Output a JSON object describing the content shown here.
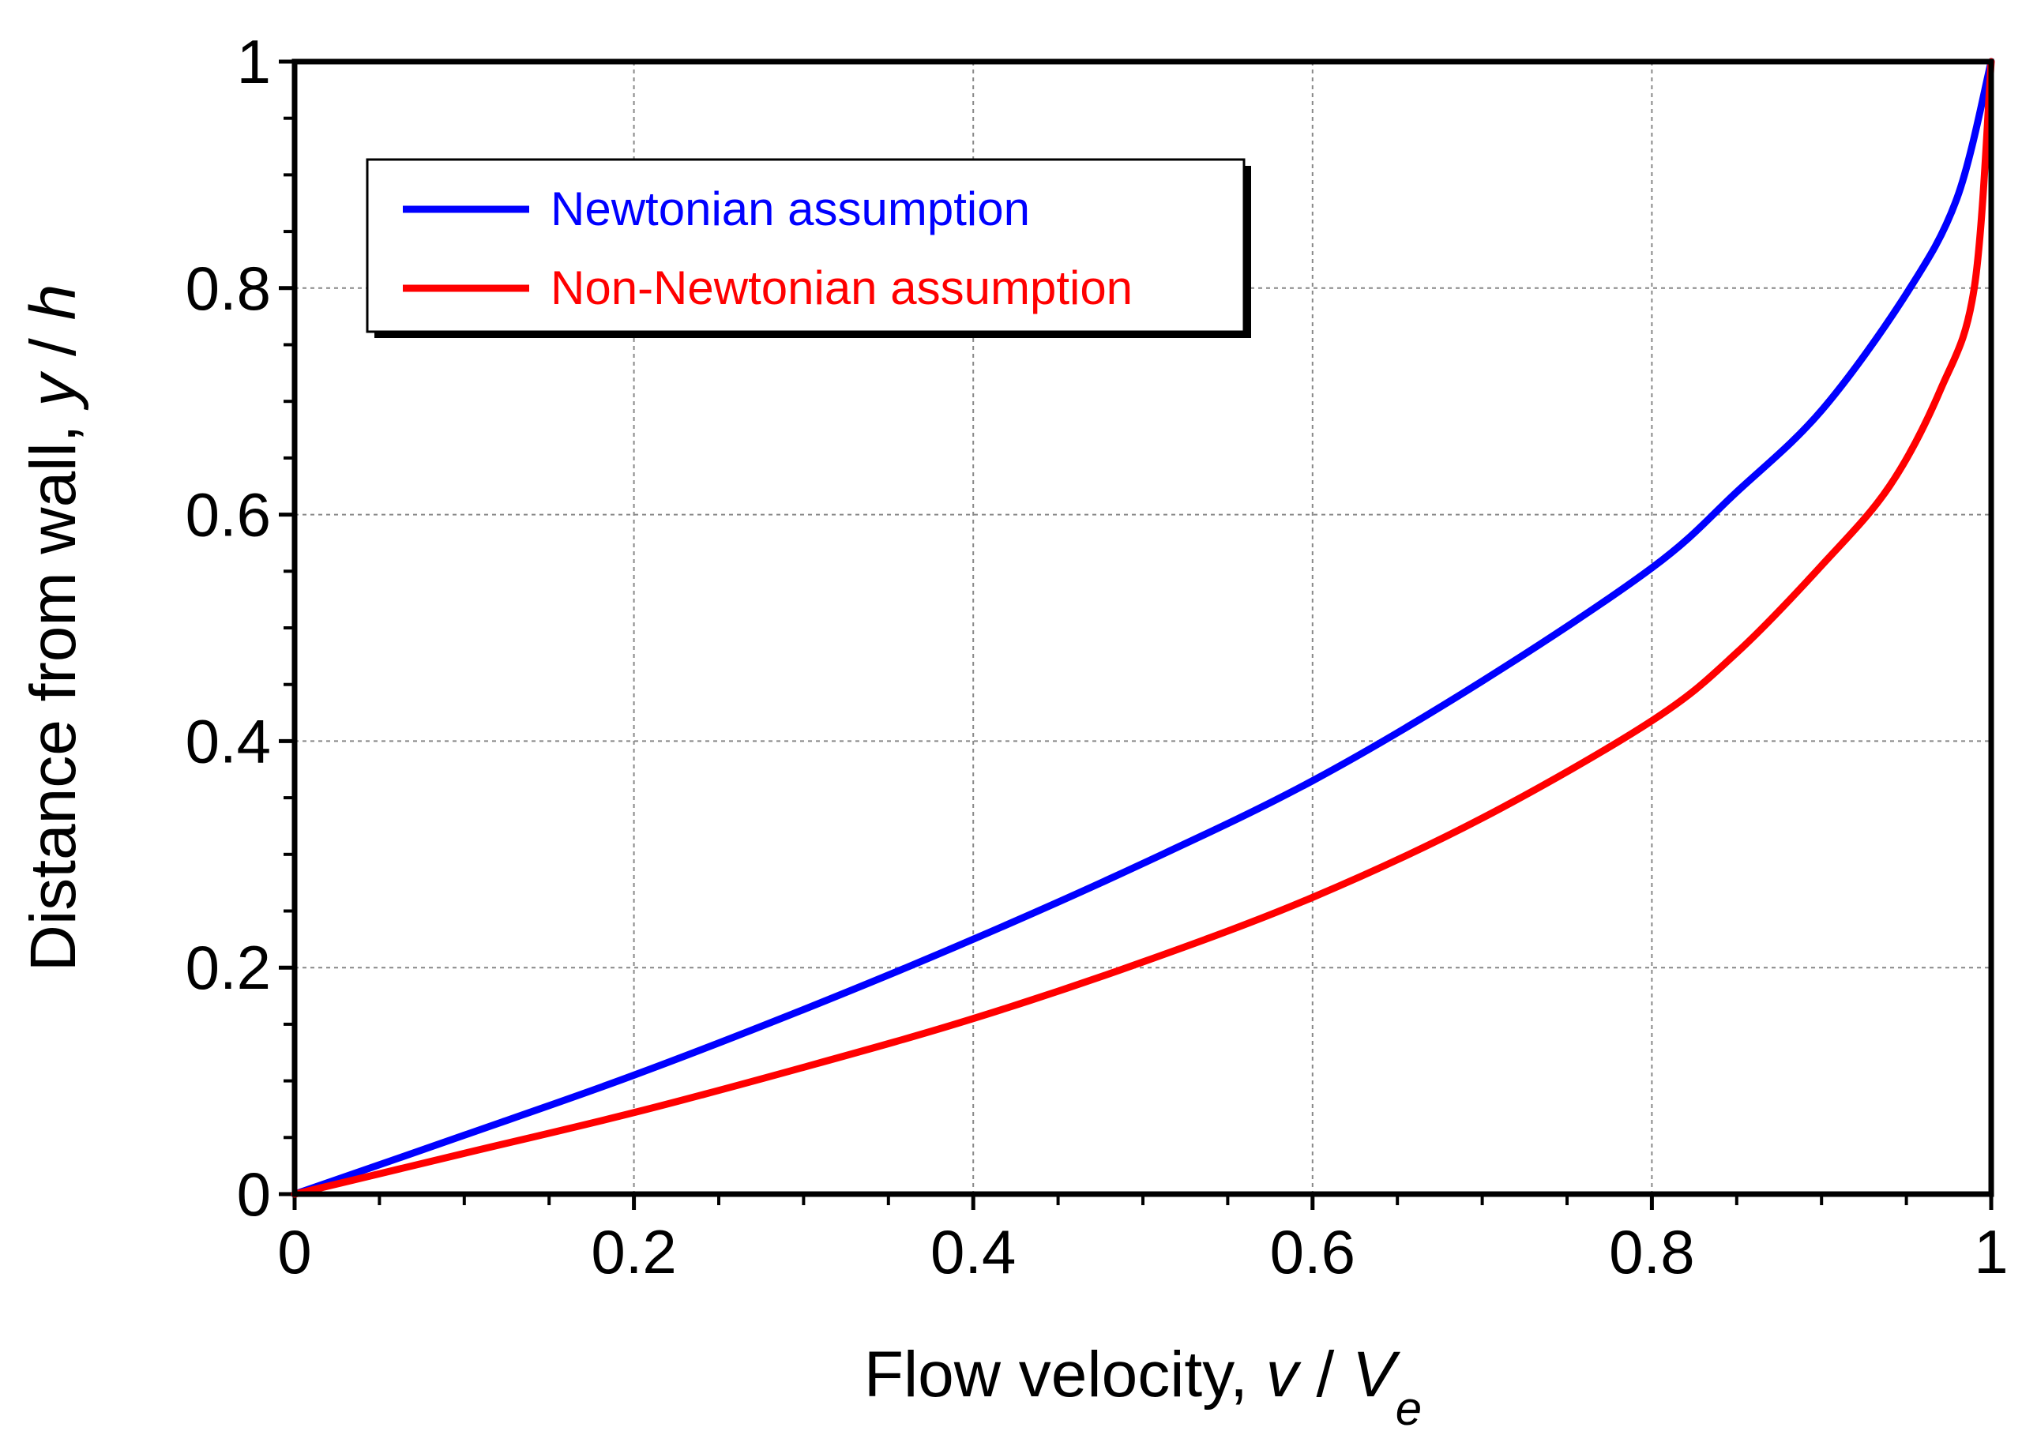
{
  "chart_data": {
    "type": "line",
    "title": "",
    "xlabel": {
      "prefix": "Flow velocity, ",
      "var": "v",
      "sep": " / ",
      "var2": "V",
      "sub": "e"
    },
    "ylabel": {
      "prefix": "Distance from wall, ",
      "var": "y",
      "sep": " / ",
      "var2": "h"
    },
    "xlim": [
      0,
      1
    ],
    "ylim": [
      0,
      1
    ],
    "xticks": [
      0,
      0.2,
      0.4,
      0.6,
      0.8,
      1
    ],
    "yticks": [
      0,
      0.2,
      0.4,
      0.6,
      0.8,
      1
    ],
    "xtick_labels": [
      "0",
      "0.2",
      "0.4",
      "0.6",
      "0.8",
      "1"
    ],
    "ytick_labels": [
      "0",
      "0.2",
      "0.4",
      "0.6",
      "0.8",
      "1"
    ],
    "grid": true,
    "legend_position": "top-left",
    "series": [
      {
        "name": "Newtonian assumption",
        "color": "#0000ff",
        "x": [
          0,
          0.1,
          0.2,
          0.3,
          0.4,
          0.5,
          0.6,
          0.7,
          0.8,
          0.85,
          0.9,
          0.95,
          0.98,
          1.0
        ],
        "y": [
          0,
          0.052,
          0.105,
          0.163,
          0.225,
          0.292,
          0.365,
          0.453,
          0.553,
          0.62,
          0.692,
          0.795,
          0.88,
          1.0
        ]
      },
      {
        "name": "Non-Newtonian assumption",
        "color": "#ff0000",
        "x": [
          0,
          0.1,
          0.2,
          0.3,
          0.4,
          0.5,
          0.6,
          0.7,
          0.8,
          0.85,
          0.9,
          0.94,
          0.97,
          0.99,
          1.0
        ],
        "y": [
          0,
          0.036,
          0.072,
          0.112,
          0.155,
          0.205,
          0.262,
          0.332,
          0.418,
          0.478,
          0.555,
          0.625,
          0.71,
          0.8,
          1.0
        ]
      }
    ]
  }
}
